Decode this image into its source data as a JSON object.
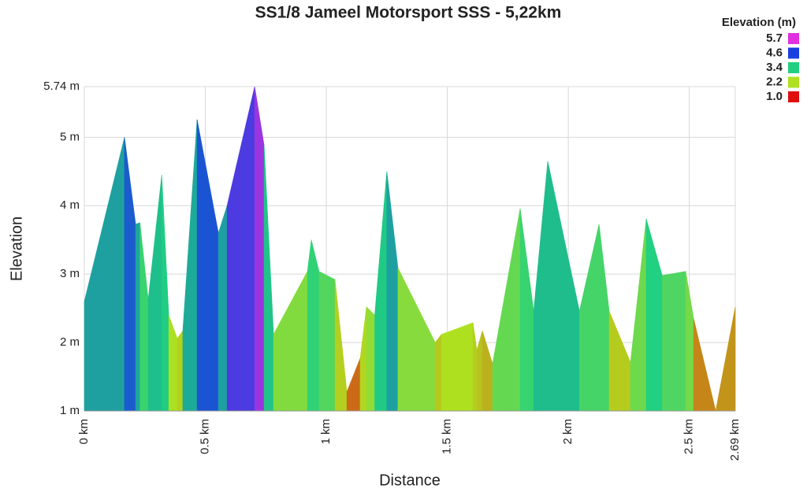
{
  "chart_data": {
    "type": "area",
    "title": "SS1/8 Jameel Motorsport SSS - 5,22km",
    "x_label": "Distance",
    "y_label": "Elevation",
    "x": [
      0,
      0.166,
      0.212,
      0.23,
      0.264,
      0.32,
      0.349,
      0.384,
      0.407,
      0.466,
      0.554,
      0.59,
      0.704,
      0.743,
      0.782,
      0.922,
      0.938,
      0.97,
      1.036,
      1.085,
      1.14,
      1.166,
      1.2,
      1.25,
      1.296,
      1.45,
      1.476,
      1.606,
      1.622,
      1.645,
      1.687,
      1.801,
      1.857,
      1.915,
      2.046,
      2.127,
      2.169,
      2.257,
      2.322,
      2.388,
      2.485,
      2.518,
      2.609,
      2.69
    ],
    "values": [
      2.6,
      5.0,
      3.73,
      3.75,
      2.63,
      4.45,
      2.4,
      2.06,
      2.17,
      5.26,
      3.6,
      4.0,
      5.74,
      4.88,
      2.12,
      3.04,
      3.5,
      3.04,
      2.92,
      1.28,
      1.77,
      2.52,
      2.4,
      4.5,
      3.09,
      2.0,
      2.12,
      2.29,
      1.89,
      2.17,
      1.69,
      3.96,
      2.46,
      4.65,
      2.46,
      3.73,
      2.46,
      1.71,
      3.81,
      2.98,
      3.04,
      2.35,
      1.0,
      2.52
    ],
    "xlim": [
      0,
      2.69
    ],
    "xticks": [
      {
        "value": 0,
        "label": "0 km"
      },
      {
        "value": 0.5,
        "label": "0.5 km"
      },
      {
        "value": 1,
        "label": "1 km"
      },
      {
        "value": 1.5,
        "label": "1.5 km"
      },
      {
        "value": 2,
        "label": "2 km"
      },
      {
        "value": 2.5,
        "label": "2.5 km"
      },
      {
        "value": 2.69,
        "label": "2.69 km"
      }
    ],
    "ylim": [
      1,
      5.74
    ],
    "yticks": [
      {
        "value": 1,
        "label": "1 m"
      },
      {
        "value": 2,
        "label": "2 m"
      },
      {
        "value": 3,
        "label": "3 m"
      },
      {
        "value": 4,
        "label": "4 m"
      },
      {
        "value": 5,
        "label": "5 m"
      },
      {
        "value": 5.74,
        "label": "5.74 m"
      }
    ],
    "grid": true,
    "legend": {
      "title": "Elevation (m)",
      "position": "top-right",
      "items": [
        {
          "value": 5.7,
          "color": "#e030e0"
        },
        {
          "value": 4.6,
          "color": "#1a3fe0"
        },
        {
          "value": 3.4,
          "color": "#20d080"
        },
        {
          "value": 2.2,
          "color": "#b0e020"
        },
        {
          "value": 1,
          "label": "1.0",
          "color": "#e01010"
        }
      ]
    }
  }
}
